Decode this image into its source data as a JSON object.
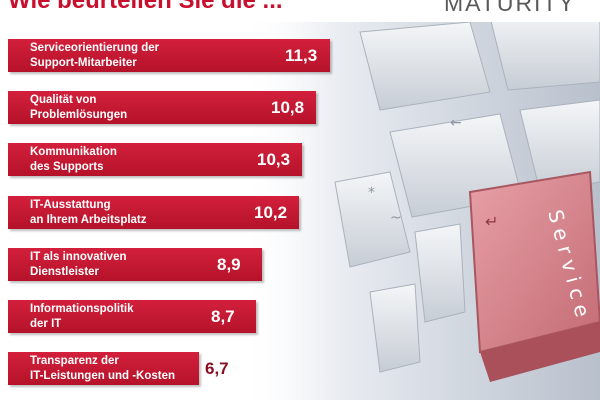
{
  "header": {
    "title": "Wie beurteilen Sie die ...",
    "logo_text": "MATURITY"
  },
  "photo": {
    "key_text": "Service"
  },
  "colors": {
    "bar": "#c8102e",
    "bar_label_text": "#ffffff",
    "outside_value": "#8a1024"
  },
  "chart_data": {
    "type": "bar",
    "orientation": "horizontal",
    "title": "Wie beurteilen Sie die ...",
    "categories": [
      "Serviceorientierung der\nSupport-Mitarbeiter",
      "Qualität von\nProblemlösungen",
      "Kommunikation\ndes Supports",
      "IT-Ausstattung\nan Ihrem Arbeitsplatz",
      "IT als innovativen\nDienstleister",
      "Informationspolitik\nder IT",
      "Transparenz der\nIT-Leistungen und -Kosten"
    ],
    "values": [
      11.3,
      10.8,
      10.3,
      10.2,
      8.9,
      8.7,
      6.7
    ],
    "value_labels": [
      "11,3",
      "10,8",
      "10,3",
      "10,2",
      "8,9",
      "8,7",
      "6,7"
    ],
    "xlim": [
      0,
      12
    ],
    "grid": false,
    "legend": "none"
  }
}
